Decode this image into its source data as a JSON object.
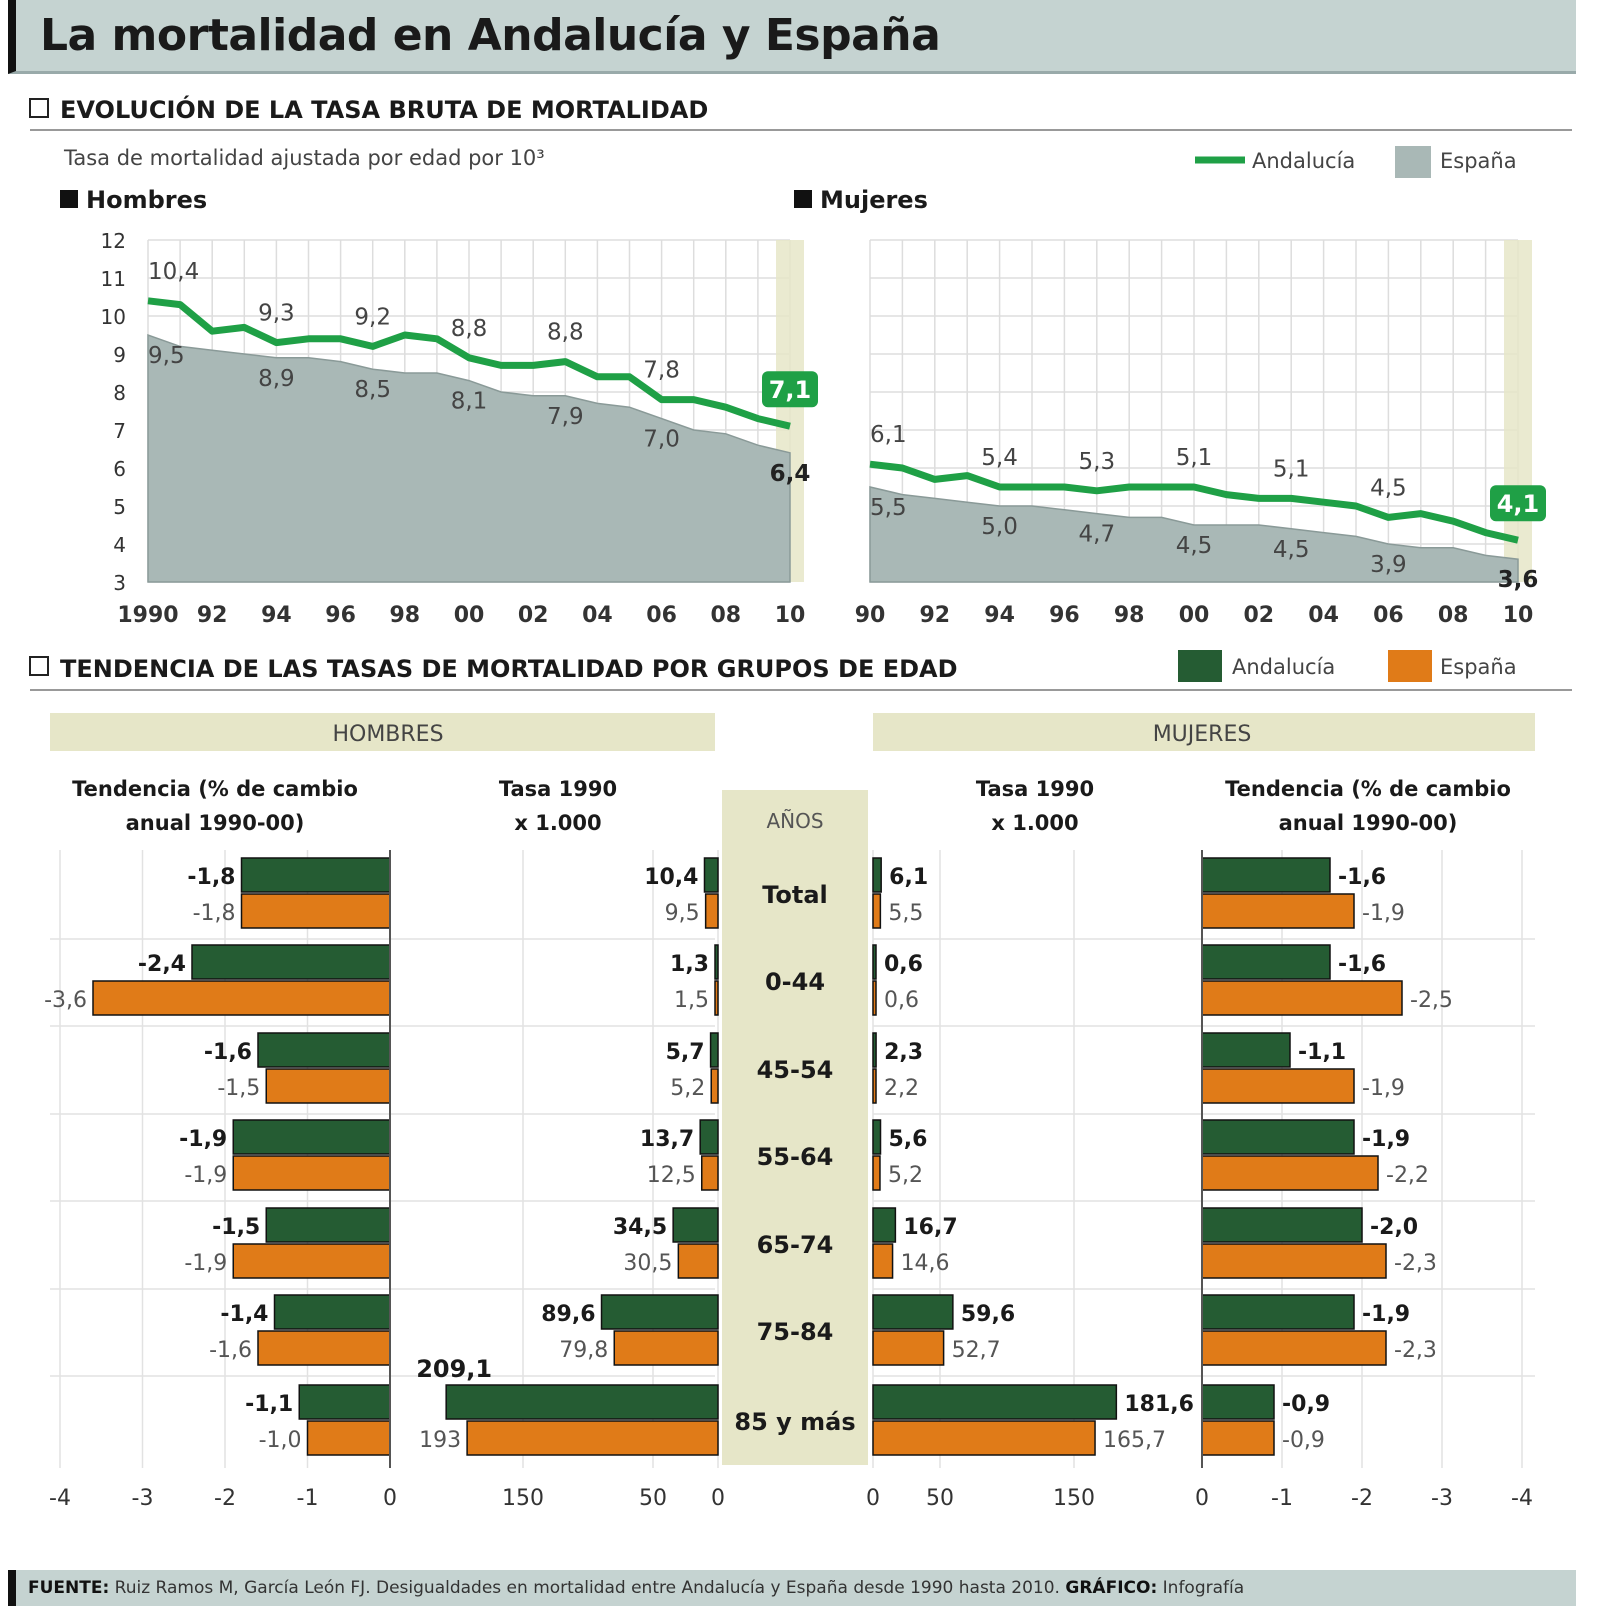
{
  "title": "La mortalidad en Andalucía y España",
  "footer": {
    "source_label": "FUENTE:",
    "source_text": "Ruiz Ramos M, García León FJ. Desigualdades en mortalidad entre Andalucía y España desde 1990 hasta 2010.",
    "graphic_label": "GRÁFICO:",
    "graphic_text": "Infografía"
  },
  "colors": {
    "andalucia_line": "#1fa046",
    "espana_area": "#a9b8b6",
    "andalucia_bar": "#255c33",
    "espana_bar": "#e07b18",
    "header_band": "#e6e6c8"
  },
  "chart_data": [
    {
      "type": "area",
      "section_title": "EVOLUCIÓN DE LA TASA BRUTA DE MORTALIDAD",
      "subtitle": "Tasa de mortalidad ajustada por edad por 10³",
      "legend": {
        "andalucia": "Andalucía",
        "espana": "España"
      },
      "panels": [
        {
          "title": "Hombres",
          "x": [
            1990,
            1991,
            1992,
            1993,
            1994,
            1995,
            1996,
            1997,
            1998,
            1999,
            2000,
            2001,
            2002,
            2003,
            2004,
            2005,
            2006,
            2007,
            2008,
            2009,
            2010
          ],
          "x_tick_labels": [
            "1990",
            "92",
            "94",
            "96",
            "98",
            "00",
            "02",
            "04",
            "06",
            "08",
            "10"
          ],
          "ylim": [
            3,
            12
          ],
          "y_ticks": [
            "3",
            "4",
            "5",
            "6",
            "7",
            "8",
            "9",
            "10",
            "11",
            "12"
          ],
          "series": [
            {
              "name": "Andalucía",
              "style": "line",
              "values": [
                10.4,
                10.3,
                9.6,
                9.7,
                9.3,
                9.4,
                9.4,
                9.2,
                9.5,
                9.4,
                8.9,
                8.7,
                8.7,
                8.8,
                8.4,
                8.4,
                7.8,
                7.8,
                7.6,
                7.3,
                7.1
              ]
            },
            {
              "name": "España",
              "style": "area",
              "values": [
                9.5,
                9.2,
                9.1,
                9.0,
                8.9,
                8.9,
                8.8,
                8.6,
                8.5,
                8.5,
                8.3,
                8.0,
                7.9,
                7.9,
                7.7,
                7.6,
                7.3,
                7.0,
                6.9,
                6.6,
                6.4
              ]
            }
          ],
          "labels_andalucia": [
            "10,4",
            "9,3",
            "9,2",
            "8,8",
            "8,8",
            "7,8"
          ],
          "labels_espana": [
            "9,5",
            "8,9",
            "8,5",
            "8,1",
            "7,9",
            "7,0",
            "6,4"
          ],
          "last_andalucia": "7,1"
        },
        {
          "title": "Mujeres",
          "x": [
            1990,
            1991,
            1992,
            1993,
            1994,
            1995,
            1996,
            1997,
            1998,
            1999,
            2000,
            2001,
            2002,
            2003,
            2004,
            2005,
            2006,
            2007,
            2008,
            2009,
            2010
          ],
          "x_tick_labels": [
            "90",
            "92",
            "94",
            "96",
            "98",
            "00",
            "02",
            "04",
            "06",
            "08",
            "10"
          ],
          "ylim": [
            3,
            12
          ],
          "series": [
            {
              "name": "Andalucía",
              "style": "line",
              "values": [
                6.1,
                6.0,
                5.7,
                5.8,
                5.5,
                5.5,
                5.5,
                5.4,
                5.5,
                5.5,
                5.5,
                5.3,
                5.2,
                5.2,
                5.1,
                5.0,
                4.7,
                4.8,
                4.6,
                4.3,
                4.1
              ]
            },
            {
              "name": "España",
              "style": "area",
              "values": [
                5.5,
                5.3,
                5.2,
                5.1,
                5.0,
                5.0,
                4.9,
                4.8,
                4.7,
                4.7,
                4.5,
                4.5,
                4.5,
                4.4,
                4.3,
                4.2,
                4.0,
                3.9,
                3.9,
                3.7,
                3.6
              ]
            }
          ],
          "labels_andalucia": [
            "6,1",
            "5,4",
            "5,3",
            "5,1",
            "5,1",
            "4,5"
          ],
          "labels_espana": [
            "5,5",
            "5,0",
            "4,7",
            "4,5",
            "4,5",
            "3,9",
            "3,6"
          ],
          "last_andalucia": "4,1"
        }
      ]
    },
    {
      "type": "bar",
      "section_title": "TENDENCIA DE LAS TASAS DE MORTALIDAD POR GRUPOS DE EDAD",
      "legend": {
        "andalucia": "Andalucía",
        "espana": "España"
      },
      "hombres_header": "HOMBRES",
      "mujeres_header": "MUJERES",
      "col_trend_l1": "Tendencia (% de cambio",
      "col_trend_l2": "anual 1990-00)",
      "col_rate_l1": "Tasa 1990",
      "col_rate_l2": "x 1.000",
      "age_header": "AÑOS",
      "categories": [
        "Total",
        "0-44",
        "45-54",
        "55-64",
        "65-74",
        "75-84",
        "85 y más"
      ],
      "hombres_trend": {
        "andalucia": [
          -1.8,
          -2.4,
          -1.6,
          -1.9,
          -1.5,
          -1.4,
          -1.1
        ],
        "espana": [
          -1.8,
          -3.6,
          -1.5,
          -1.9,
          -1.9,
          -1.6,
          -1.0
        ]
      },
      "hombres_trend_labels": {
        "andalucia": [
          "-1,8",
          "-2,4",
          "-1,6",
          "-1,9",
          "-1,5",
          "-1,4",
          "-1,1"
        ],
        "espana": [
          "-1,8",
          "-3,6",
          "-1,5",
          "-1,9",
          "-1,9",
          "-1,6",
          "-1,0"
        ]
      },
      "hombres_rate": {
        "andalucia": [
          10.4,
          1.3,
          5.7,
          13.7,
          34.5,
          89.6,
          209.1
        ],
        "espana": [
          9.5,
          1.5,
          5.2,
          12.5,
          30.5,
          79.8,
          193
        ]
      },
      "hombres_rate_labels": {
        "andalucia": [
          "10,4",
          "1,3",
          "5,7",
          "13,7",
          "34,5",
          "89,6",
          "209,1"
        ],
        "espana": [
          "9,5",
          "1,5",
          "5,2",
          "12,5",
          "30,5",
          "79,8",
          "193"
        ]
      },
      "mujeres_rate": {
        "andalucia": [
          6.1,
          0.6,
          2.3,
          5.6,
          16.7,
          59.6,
          181.6
        ],
        "espana": [
          5.5,
          0.6,
          2.2,
          5.2,
          14.6,
          52.7,
          165.7
        ]
      },
      "mujeres_rate_labels": {
        "andalucia": [
          "6,1",
          "0,6",
          "2,3",
          "5,6",
          "16,7",
          "59,6",
          "181,6"
        ],
        "espana": [
          "5,5",
          "0,6",
          "2,2",
          "5,2",
          "14,6",
          "52,7",
          "165,7"
        ]
      },
      "mujeres_trend": {
        "andalucia": [
          -1.6,
          -1.6,
          -1.1,
          -1.9,
          -2.0,
          -1.9,
          -0.9
        ],
        "espana": [
          -1.9,
          -2.5,
          -1.9,
          -2.2,
          -2.3,
          -2.3,
          -0.9
        ]
      },
      "mujeres_trend_labels": {
        "andalucia": [
          "-1,6",
          "-1,6",
          "-1,1",
          "-1,9",
          "-2,0",
          "-1,9",
          "-0,9"
        ],
        "espana": [
          "-1,9",
          "-2,5",
          "-1,9",
          "-2,2",
          "-2,3",
          "-2,3",
          "-0,9"
        ]
      },
      "trend_axis_left": [
        "-4",
        "-3",
        "-2",
        "-1",
        "0"
      ],
      "rate_axis_left": [
        "150",
        "50",
        "0"
      ],
      "rate_axis_right": [
        "0",
        "50",
        "150"
      ],
      "trend_axis_right": [
        "0",
        "-1",
        "-2",
        "-3",
        "-4"
      ]
    }
  ]
}
